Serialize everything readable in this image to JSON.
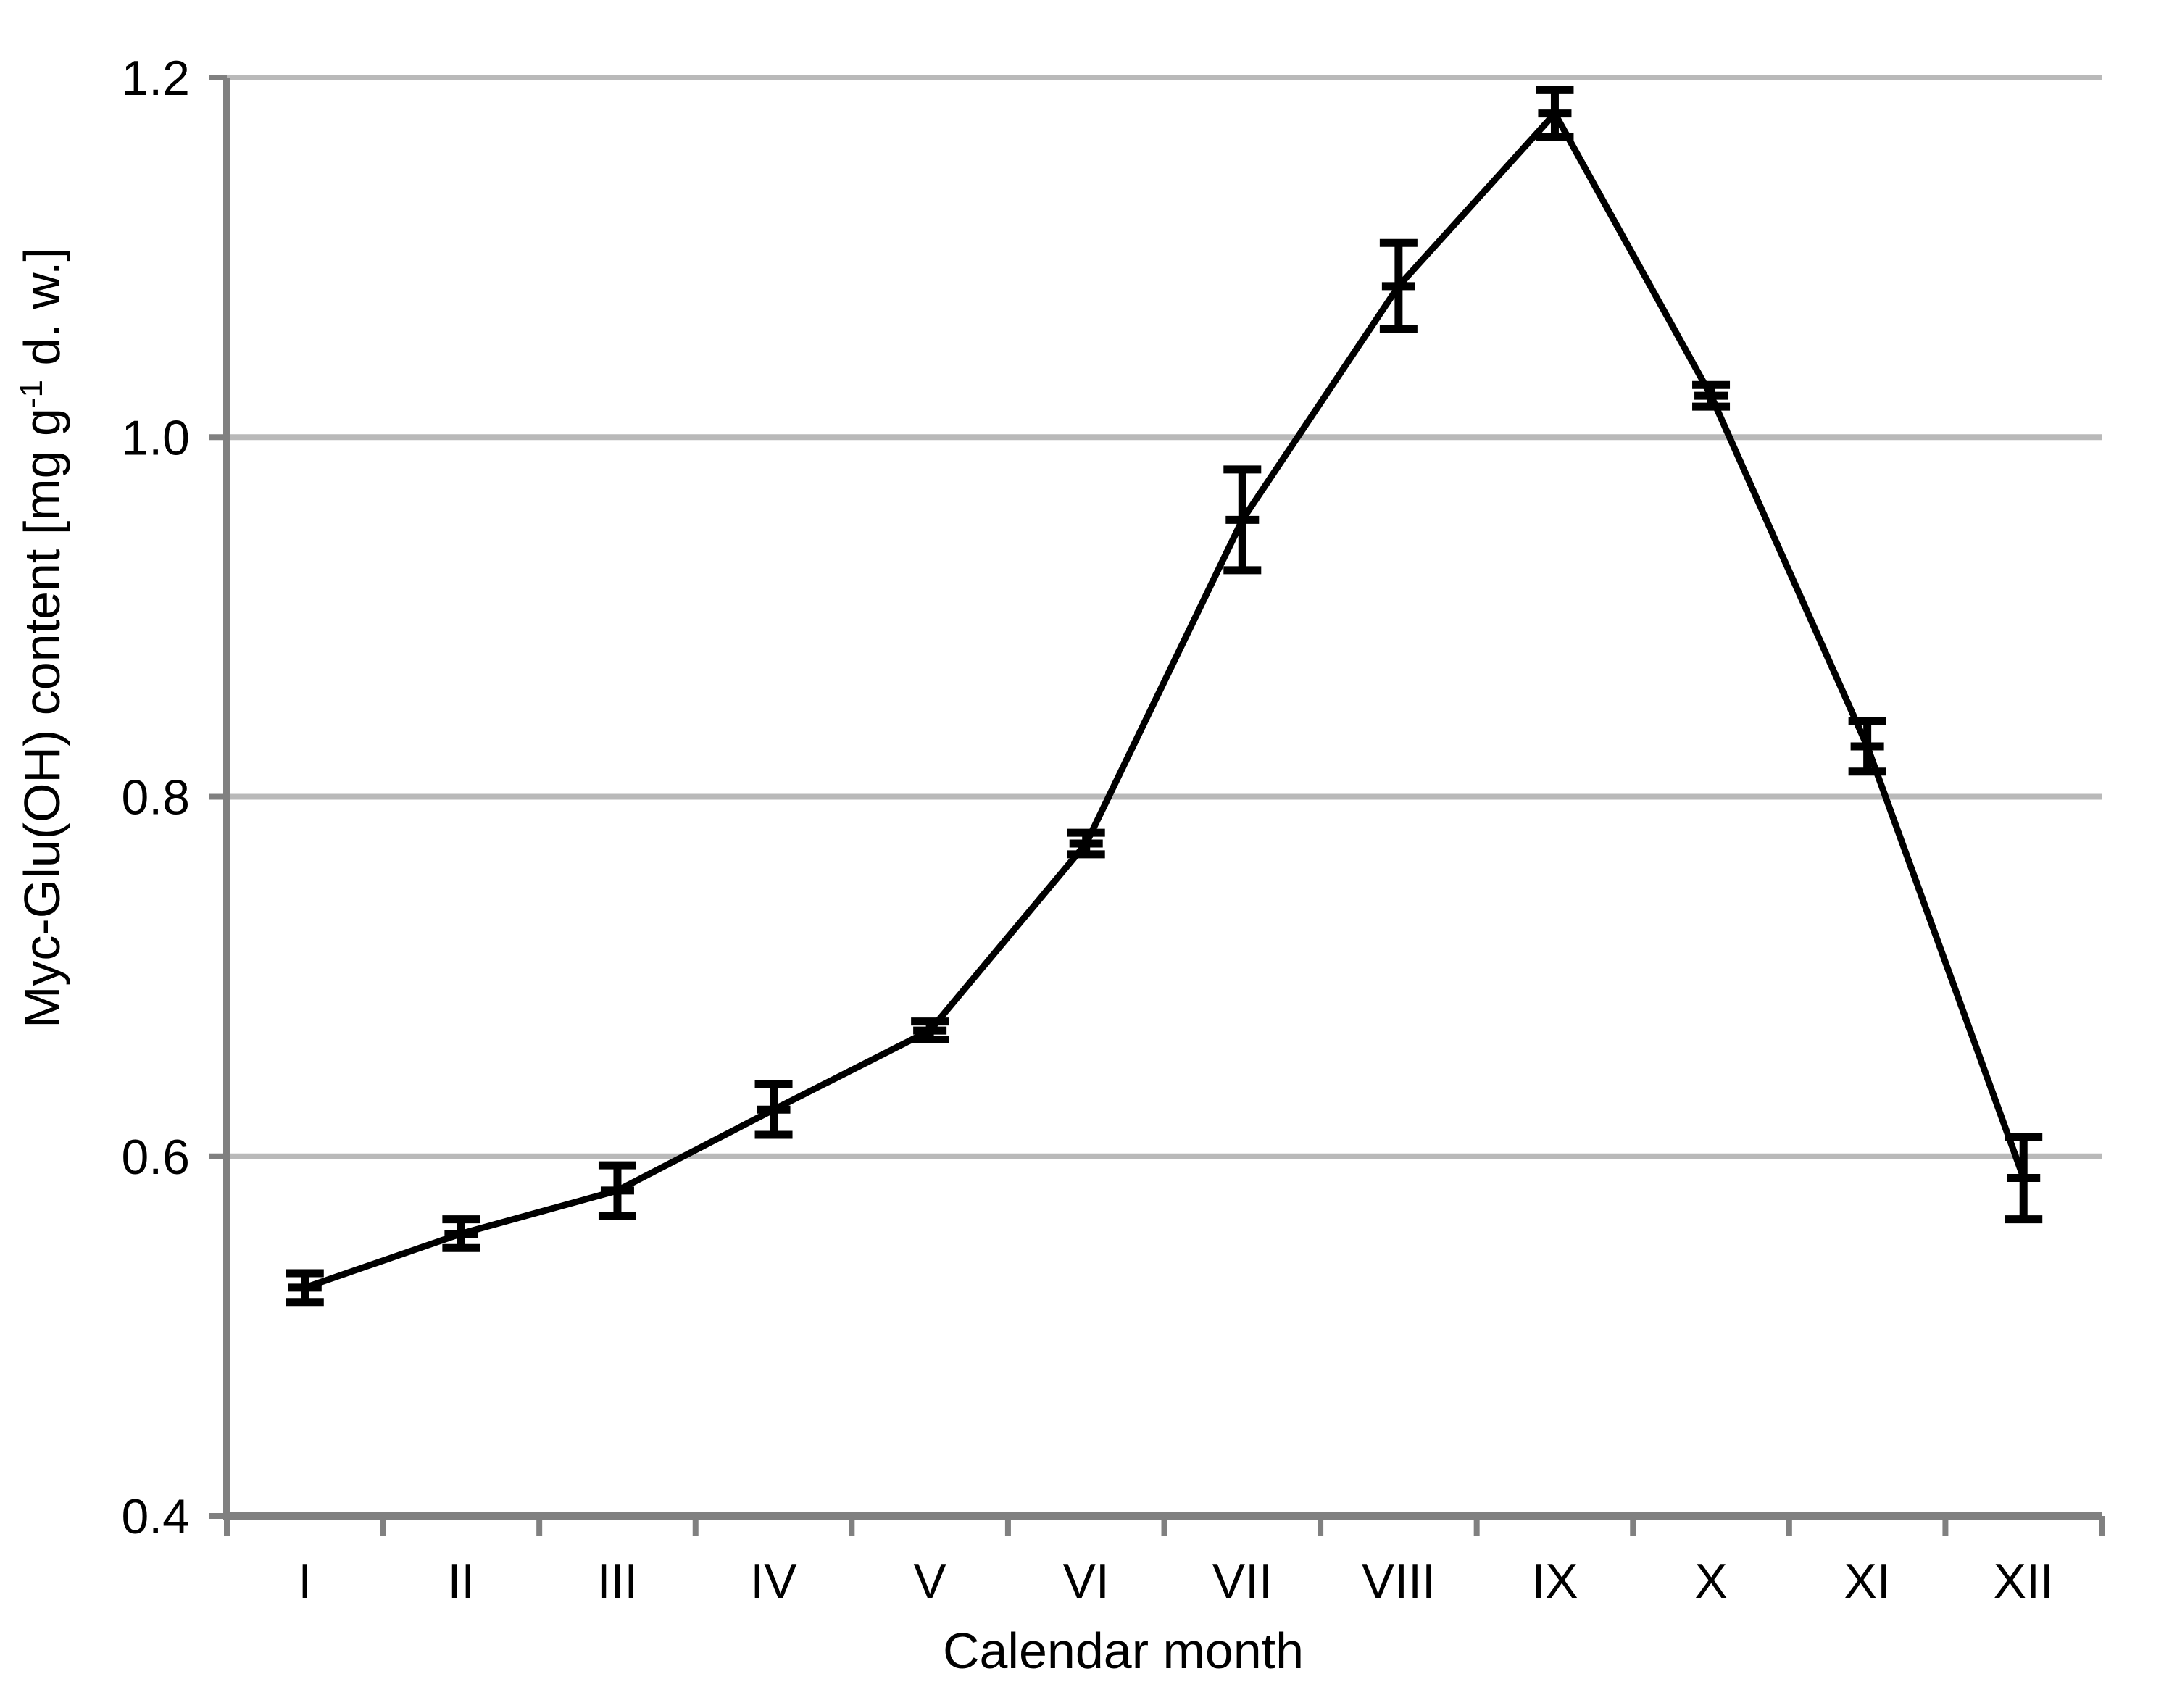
{
  "chart_data": {
    "type": "line",
    "title": "",
    "xlabel": "Calendar month",
    "ylabel": "Myc-Glu(OH) content [mg g-1 d. w.]",
    "ylabel_parts": {
      "pre": "Myc-Glu(OH) content [mg g",
      "sup": "-1",
      "post": " d. w.]"
    },
    "categories": [
      "I",
      "II",
      "III",
      "IV",
      "V",
      "VI",
      "VII",
      "VIII",
      "IX",
      "X",
      "XI",
      "XII"
    ],
    "series": [
      {
        "name": "Myc-Glu(OH) content",
        "values": [
          0.527,
          0.557,
          0.581,
          0.626,
          0.67,
          0.774,
          0.954,
          1.084,
          1.18,
          1.023,
          0.828,
          0.588
        ],
        "errors": [
          0.008,
          0.008,
          0.014,
          0.014,
          0.005,
          0.006,
          0.028,
          0.024,
          0.013,
          0.006,
          0.014,
          0.023
        ]
      }
    ],
    "ylim": [
      0.4,
      1.2
    ],
    "ytick_step": 0.2,
    "ytick_labels": [
      "0.4",
      "0.6",
      "0.8",
      "1.0",
      "1.2"
    ],
    "grid": "horizontal-only",
    "legend": "none",
    "marker": "horizontal-dash",
    "colors": {
      "series": "#000000",
      "axis": "#808080",
      "gridline": "#b9b9b9",
      "text": "#000000",
      "background": "#ffffff"
    }
  }
}
